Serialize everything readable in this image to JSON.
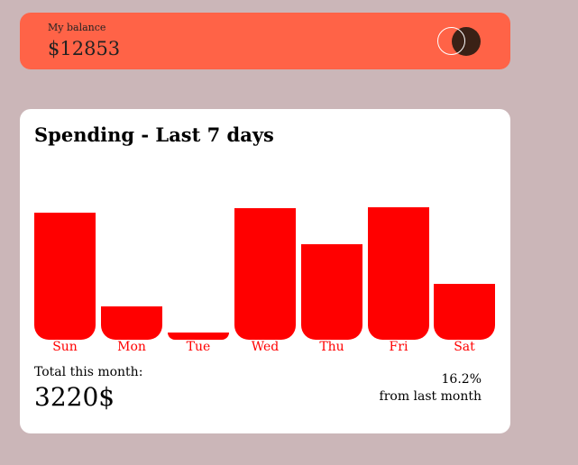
{
  "balance": {
    "label": "My balance",
    "amount": "$12853",
    "logo_icon": "card-logo-circles",
    "card_color": "#ff6347"
  },
  "spending": {
    "title": "Spending - Last 7 days",
    "total_label": "Total this month:",
    "total_amount": "3220$",
    "change_percent": "16.2%",
    "change_text": "from last month",
    "bar_color": "#ff0000"
  },
  "chart_data": {
    "type": "bar",
    "categories": [
      "Sun",
      "Mon",
      "Tue",
      "Wed",
      "Thu",
      "Fri",
      "Sat"
    ],
    "values": [
      88,
      23,
      5,
      91,
      66,
      92,
      39
    ],
    "ylim": [
      0,
      100
    ],
    "grid": false
  }
}
